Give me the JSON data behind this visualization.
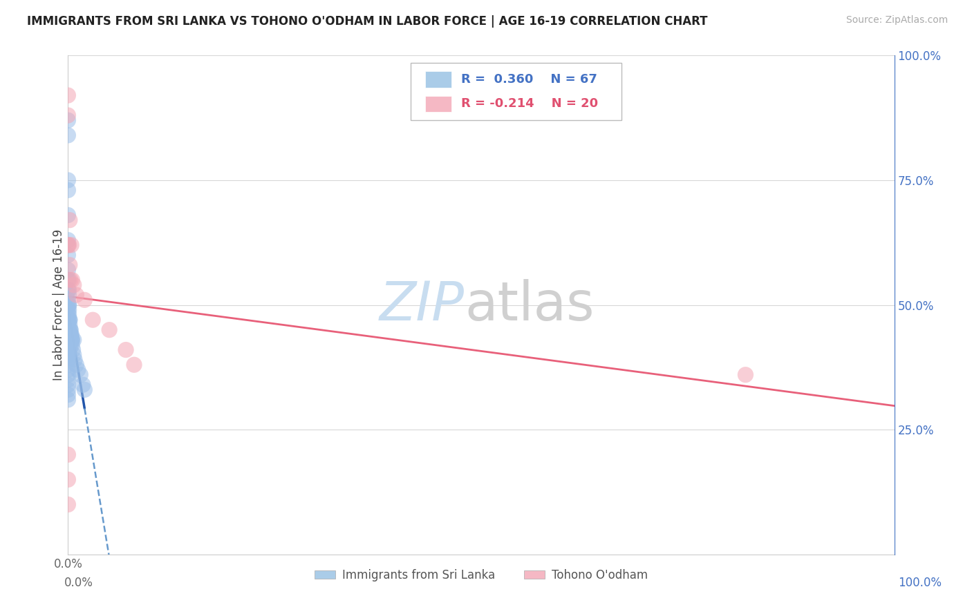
{
  "title": "IMMIGRANTS FROM SRI LANKA VS TOHONO O'ODHAM IN LABOR FORCE | AGE 16-19 CORRELATION CHART",
  "source": "Source: ZipAtlas.com",
  "ylabel": "In Labor Force | Age 16-19",
  "sri_lanka_color": "#9bbfe8",
  "tohono_color": "#f4a7b5",
  "sri_lanka_line_color": "#2255aa",
  "sri_lanka_dash_color": "#6699cc",
  "tohono_line_color": "#e8607a",
  "R_sl": 0.36,
  "N_sl": 67,
  "R_t": -0.214,
  "N_t": 20,
  "label_sl": "Immigrants from Sri Lanka",
  "label_t": "Tohono O'odham",
  "legend_sl_color": "#aacce8",
  "legend_t_color": "#f5b8c4",
  "watermark_zip_color": "#d8e8f5",
  "watermark_atlas_color": "#d0d0d0",
  "sri_lanka_x": [
    0.0,
    0.0,
    0.0,
    0.0,
    0.0,
    0.0,
    0.0,
    0.0,
    0.0,
    0.0,
    0.0,
    0.0,
    0.0,
    0.0,
    0.0,
    0.0,
    0.0,
    0.0,
    0.0,
    0.0,
    0.0,
    0.0,
    0.0,
    0.0,
    0.0,
    0.0,
    0.0,
    0.0,
    0.0,
    0.0,
    0.0,
    0.0,
    0.001,
    0.001,
    0.001,
    0.001,
    0.001,
    0.001,
    0.002,
    0.002,
    0.002,
    0.002,
    0.003,
    0.003,
    0.003,
    0.004,
    0.004,
    0.005,
    0.005,
    0.006,
    0.007,
    0.008,
    0.01,
    0.012,
    0.015,
    0.018,
    0.02,
    0.001,
    0.001,
    0.002,
    0.003,
    0.004,
    0.005,
    0.007,
    0.003,
    0.002,
    0.001
  ],
  "sri_lanka_y": [
    0.87,
    0.84,
    0.75,
    0.73,
    0.68,
    0.63,
    0.62,
    0.6,
    0.57,
    0.55,
    0.53,
    0.51,
    0.5,
    0.49,
    0.48,
    0.47,
    0.46,
    0.45,
    0.44,
    0.43,
    0.42,
    0.41,
    0.4,
    0.39,
    0.38,
    0.37,
    0.36,
    0.35,
    0.34,
    0.33,
    0.32,
    0.31,
    0.53,
    0.52,
    0.5,
    0.49,
    0.48,
    0.47,
    0.47,
    0.46,
    0.45,
    0.44,
    0.45,
    0.44,
    0.43,
    0.44,
    0.43,
    0.43,
    0.42,
    0.41,
    0.4,
    0.39,
    0.38,
    0.37,
    0.36,
    0.34,
    0.33,
    0.55,
    0.5,
    0.47,
    0.45,
    0.44,
    0.43,
    0.43,
    0.42,
    0.41,
    0.4
  ],
  "tohono_x": [
    0.0,
    0.0,
    0.0,
    0.0,
    0.001,
    0.002,
    0.003,
    0.005,
    0.007,
    0.01,
    0.02,
    0.03,
    0.05,
    0.07,
    0.08,
    0.82,
    0.0,
    0.0,
    0.002,
    0.004
  ],
  "tohono_y": [
    0.92,
    0.88,
    0.62,
    0.2,
    0.62,
    0.58,
    0.55,
    0.55,
    0.54,
    0.52,
    0.51,
    0.47,
    0.45,
    0.41,
    0.38,
    0.36,
    0.15,
    0.1,
    0.67,
    0.62
  ],
  "xmin": 0.0,
  "xmax": 1.0,
  "ymin": 0.0,
  "ymax": 1.0
}
